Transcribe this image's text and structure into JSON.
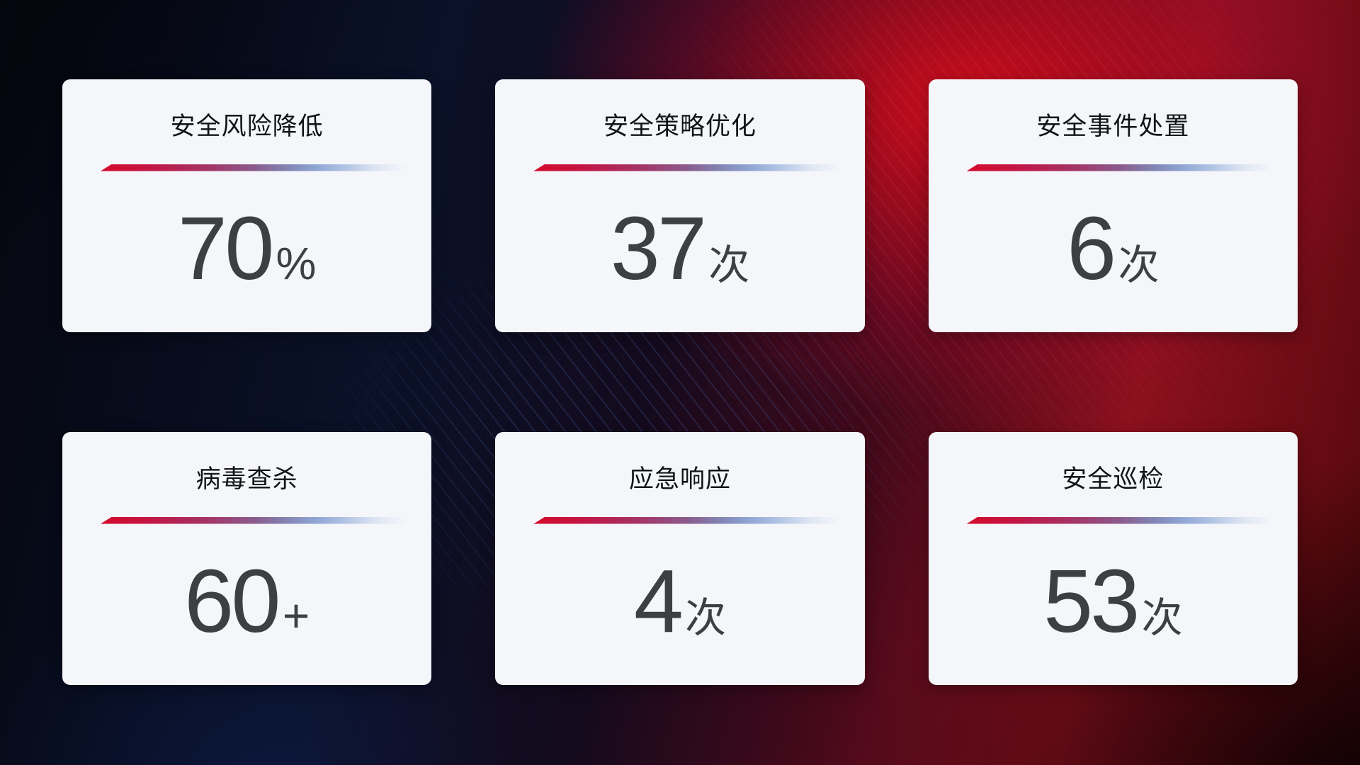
{
  "cards": [
    {
      "title": "安全风险降低",
      "value": "70",
      "suffix": "%"
    },
    {
      "title": "安全策略优化",
      "value": "37",
      "suffix": "次"
    },
    {
      "title": "安全事件处置",
      "value": "6",
      "suffix": "次"
    },
    {
      "title": "病毒查杀",
      "value": "60",
      "suffix": "+"
    },
    {
      "title": "应急响应",
      "value": "4",
      "suffix": "次"
    },
    {
      "title": "安全巡检",
      "value": "53",
      "suffix": "次"
    }
  ],
  "colors": {
    "card_background": "#f5f6fa",
    "title_text": "#111417",
    "value_text": "#3d4043",
    "accent_line_start_red": "#d40a2b",
    "accent_line_mid_purple": "#8a5a8c",
    "accent_line_blue": "#90a7d5",
    "background_navy": "#0a1128",
    "background_red_glow": "#db0d1b",
    "background_dark_maroon": "#1e0406"
  }
}
